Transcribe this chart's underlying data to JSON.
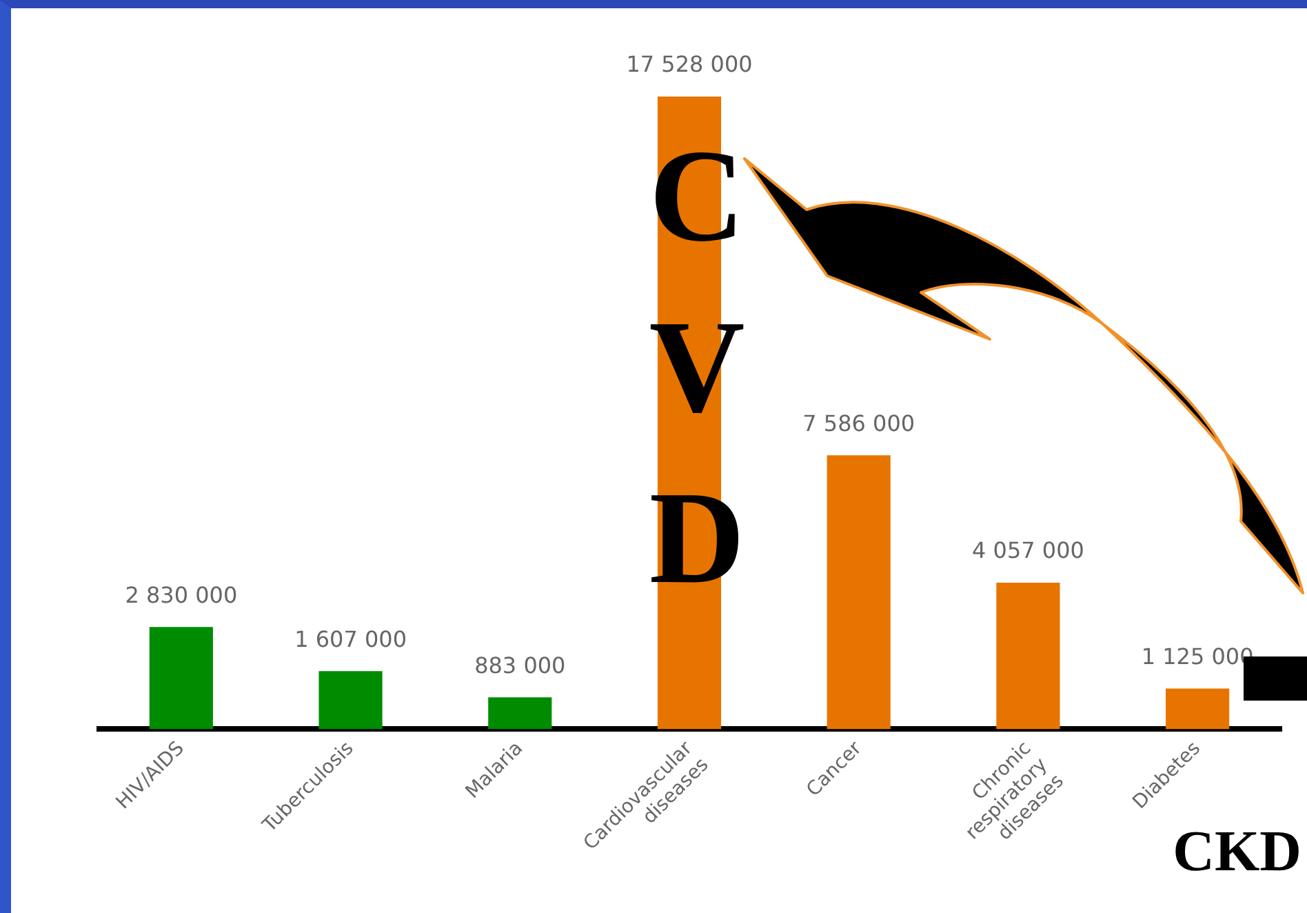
{
  "chart_data": {
    "type": "bar",
    "categories": [
      "HIV/AIDS",
      "Tuberculosis",
      "Malaria",
      "Cardiovascular diseases",
      "Cancer",
      "Chronic respiratory diseases",
      "Diabetes"
    ],
    "values": [
      2830000,
      1607000,
      883000,
      17528000,
      7586000,
      4057000,
      1125000
    ],
    "colors": [
      "#008c00",
      "#008c00",
      "#008c00",
      "#e87400",
      "#e87400",
      "#e87400",
      "#e87400"
    ],
    "value_labels": [
      "2 830 000",
      "1 607 000",
      "883 000",
      "17 528 000",
      "7 586 000",
      "4 057 000",
      "1 125 000"
    ],
    "annotations": [
      "CVD",
      "CKD"
    ],
    "grid": false,
    "legend": false
  }
}
